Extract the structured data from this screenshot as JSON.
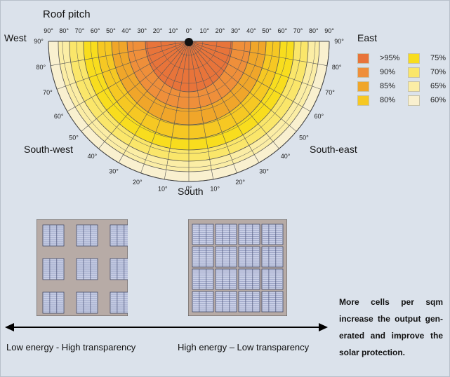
{
  "polar": {
    "title": "Roof pitch",
    "directions": {
      "west": "West",
      "east": "East",
      "southwest": "South-west",
      "southeast": "South-east",
      "south": "South"
    },
    "top_ticks": [
      "90°",
      "80°",
      "70°",
      "60°",
      "50°",
      "40°",
      "30°",
      "20°",
      "10°",
      "0°",
      "10°",
      "20°",
      "30°",
      "40°",
      "50°",
      "60°",
      "70°",
      "80°",
      "90°"
    ],
    "side_ticks_left": [
      "90°",
      "80°",
      "70°",
      "60°",
      "50°",
      "40°",
      "30°",
      "20°",
      "10°"
    ],
    "side_ticks_right": [
      "90°",
      "80°",
      "70°",
      "60°",
      "50°",
      "40°",
      "30°",
      "20°",
      "10°"
    ],
    "bottom_tick": "0°"
  },
  "legend": {
    "items": [
      {
        "label": ">95%",
        "color": "#e8743a"
      },
      {
        "label": "90%",
        "color": "#ef8f3a"
      },
      {
        "label": "85%",
        "color": "#f0a62a"
      },
      {
        "label": "80%",
        "color": "#f6c823"
      },
      {
        "label": "75%",
        "color": "#f8dd1e"
      },
      {
        "label": "70%",
        "color": "#fae66a"
      },
      {
        "label": "65%",
        "color": "#fbeda5"
      },
      {
        "label": "60%",
        "color": "#f9f0cf"
      }
    ]
  },
  "panels": {
    "left_caption": "Low energy - High transparency",
    "right_caption": "High energy – Low transparency"
  },
  "note": {
    "lines": [
      "More cells per sqm",
      "increase the output gen-",
      "erated and improve the",
      "solar protection."
    ]
  },
  "colors": {
    "panel_bg": "#b7aba6",
    "cell": "#c9cfe6",
    "cell_line": "#6f7aa6",
    "arrow": "#000000"
  }
}
